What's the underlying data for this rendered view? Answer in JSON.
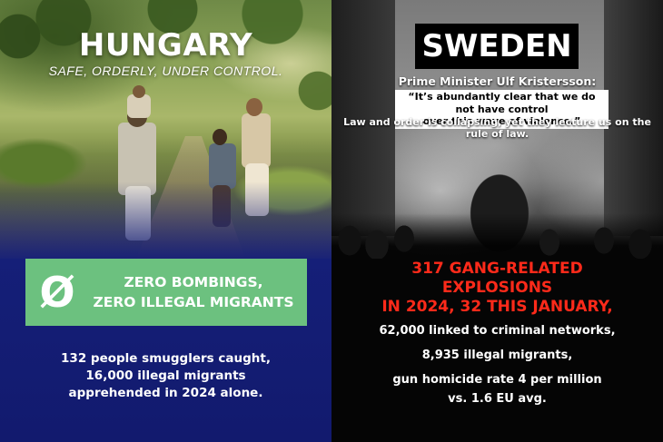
{
  "hungary": {
    "title": "HUNGARY",
    "subtitle": "SAFE, ORDERLY, UNDER CONTROL.",
    "symbol": "Ø",
    "box_line1": "ZERO BOMBINGS,",
    "box_line2": "ZERO ILLEGAL MIGRANTS",
    "stat1": "132 people smugglers caught,",
    "stat2": "16,000 illegal migrants",
    "stat3": "apprehended in 2024 alone.",
    "colors": {
      "panel": "#151f78",
      "box": "#6cc17f"
    }
  },
  "sweden": {
    "title": "SWEDEN",
    "pm_label": "Prime Minister Ulf Kristersson:",
    "quote_line1": "“It’s abundantly clear that we do not have control",
    "quote_line2": "over this wave of violence.”",
    "law_line": "Law and order is collapsing, yet they lecture us on the rule of law.",
    "red_line1": "317 GANG-RELATED",
    "red_line2": "EXPLOSIONS",
    "red_line3": "IN 2024, 32 THIS JANUARY,",
    "stat1": "62,000 linked to criminal networks,",
    "stat2": "8,935 illegal migrants,",
    "stat3": "gun homicide rate 4 per million",
    "stat4": "vs. 1.6 EU avg.",
    "colors": {
      "headline": "#ff2a1a",
      "background": "#050505"
    }
  }
}
